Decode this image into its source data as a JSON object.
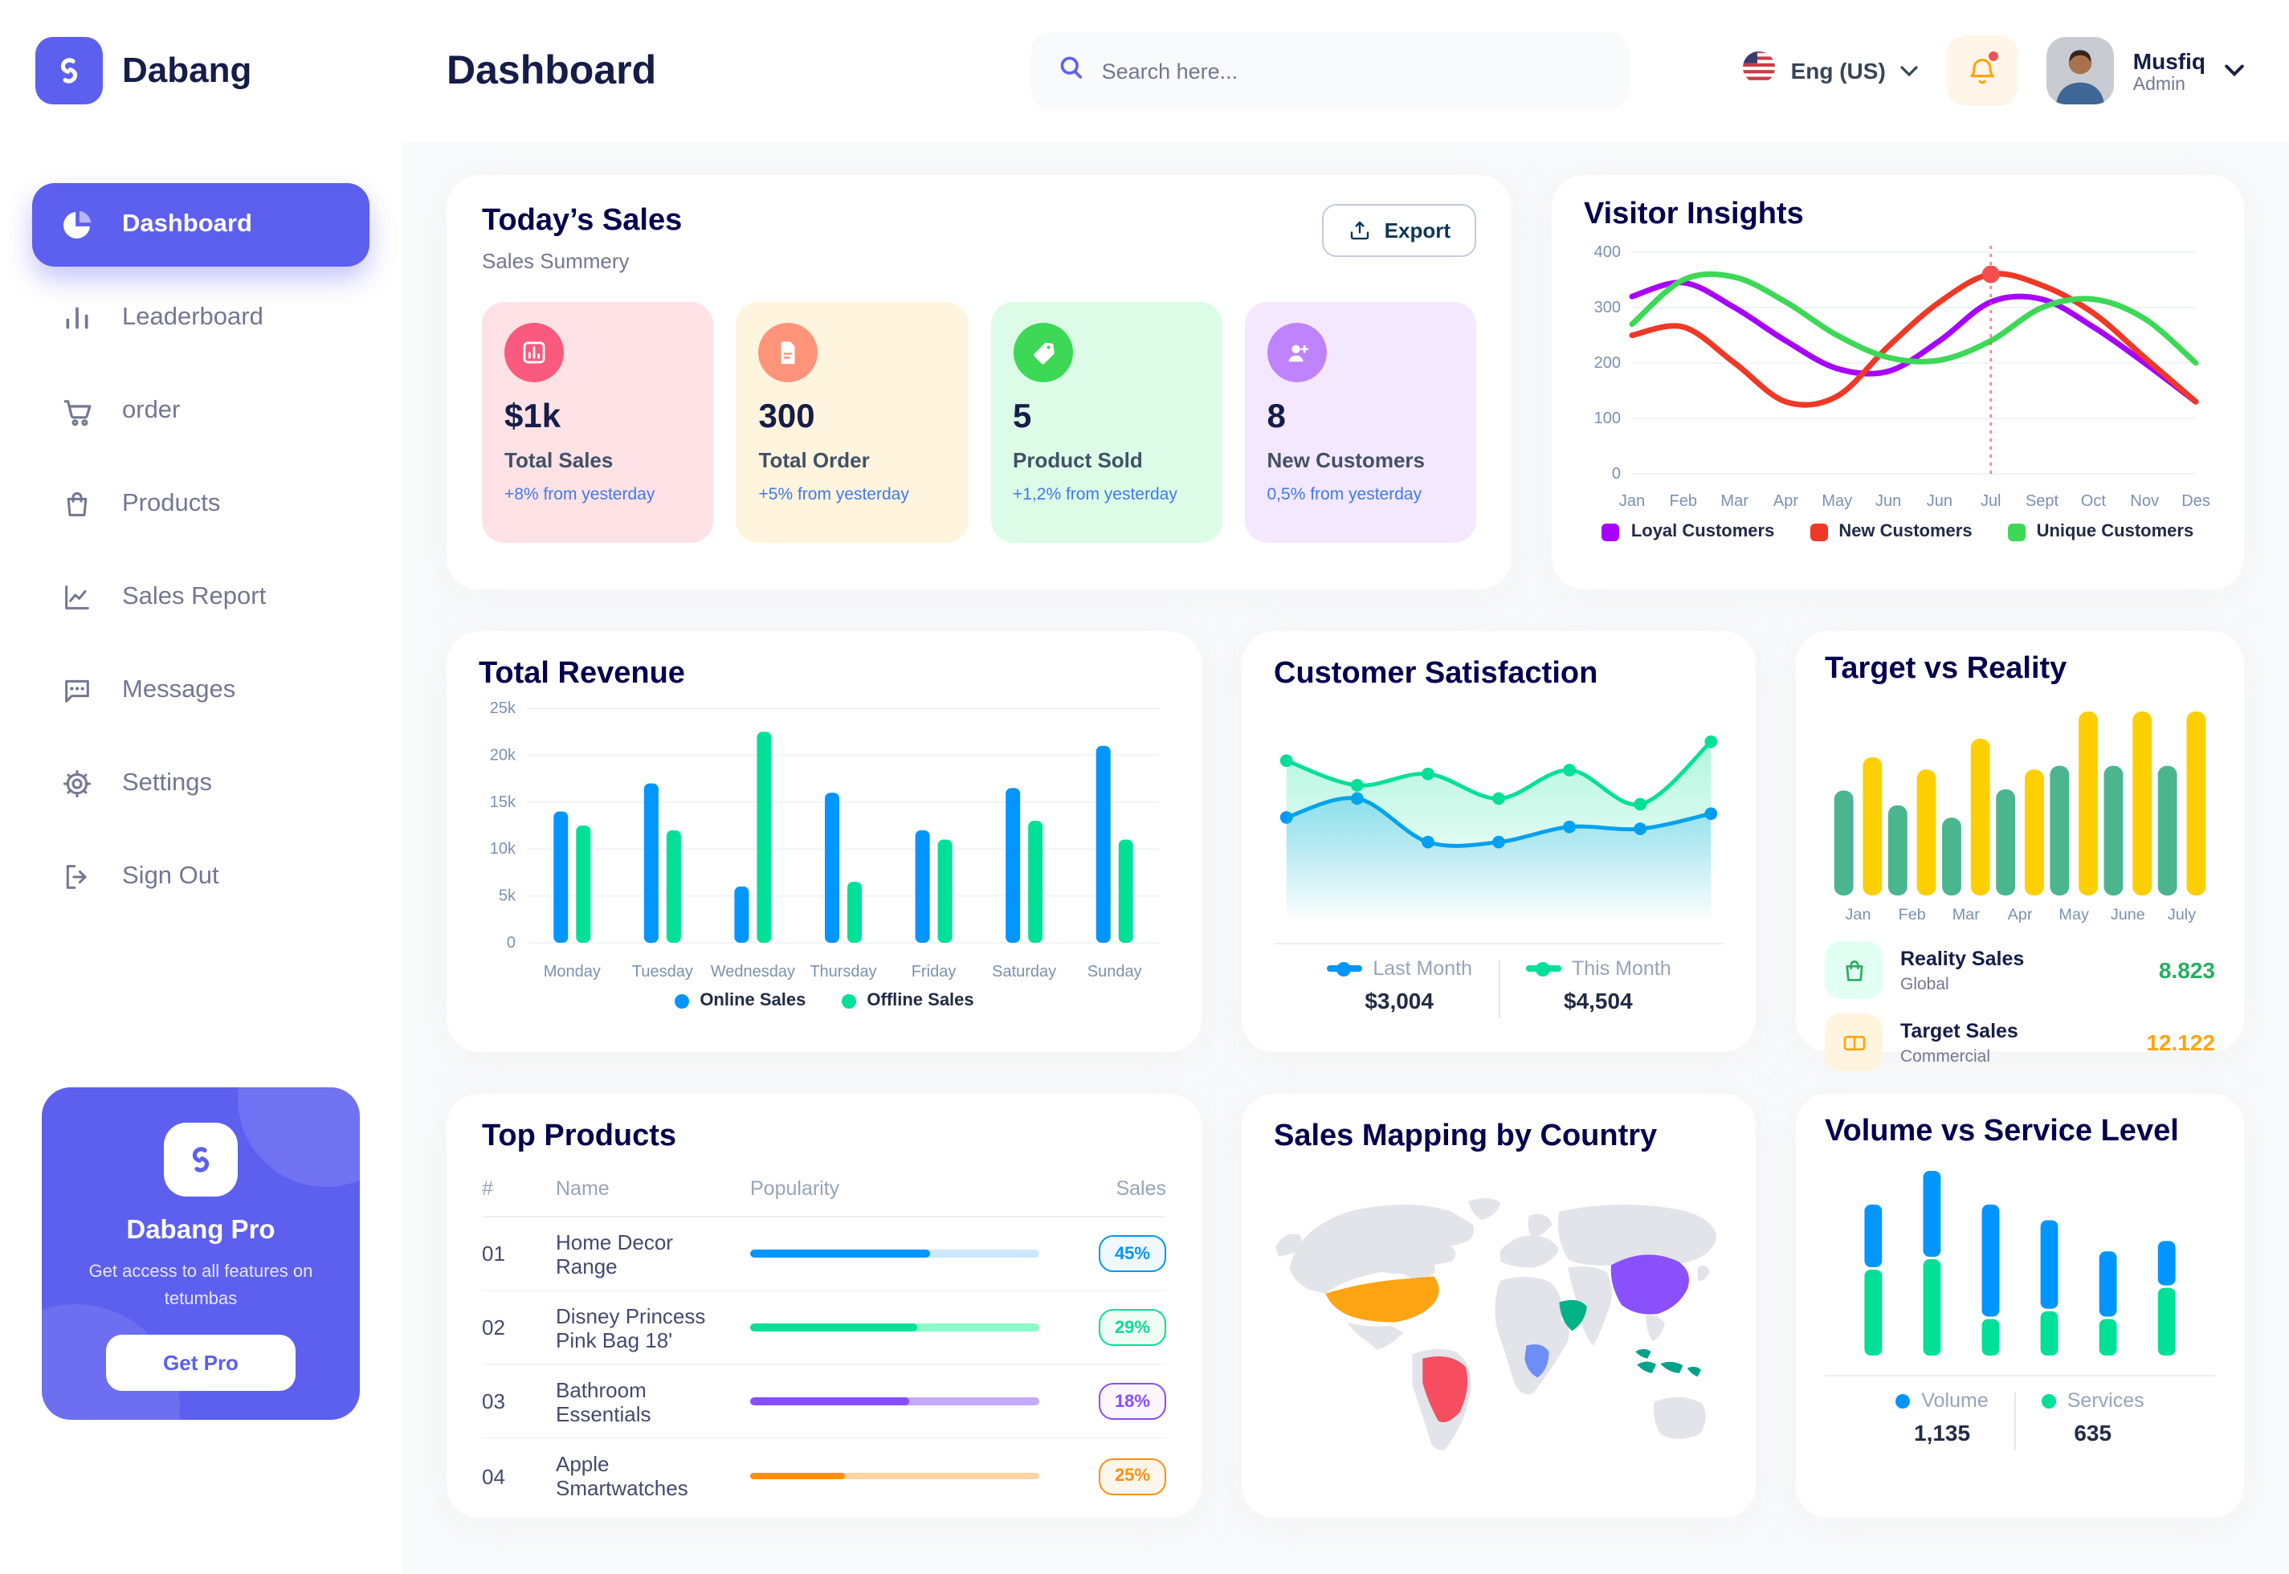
{
  "app": {
    "name": "Dabang",
    "accent_color": "#5D5FEF"
  },
  "header": {
    "title": "Dashboard",
    "search_placeholder": "Search here...",
    "language": "Eng (US)",
    "user_name": "Musfiq",
    "user_role": "Admin",
    "icons": [
      "search-icon",
      "us-flag-icon",
      "bell-icon",
      "chevron-down-icon"
    ]
  },
  "sidebar": {
    "items": [
      {
        "label": "Dashboard",
        "icon": "pie-chart-icon",
        "active": true
      },
      {
        "label": "Leaderboard",
        "icon": "bar-chart-icon",
        "active": false
      },
      {
        "label": "order",
        "icon": "cart-icon",
        "active": false
      },
      {
        "label": "Products",
        "icon": "bag-icon",
        "active": false
      },
      {
        "label": "Sales Report",
        "icon": "line-chart-icon",
        "active": false
      },
      {
        "label": "Messages",
        "icon": "chat-icon",
        "active": false
      },
      {
        "label": "Settings",
        "icon": "gear-icon",
        "active": false
      },
      {
        "label": "Sign Out",
        "icon": "sign-out-icon",
        "active": false
      }
    ],
    "pro": {
      "title": "Dabang Pro",
      "desc": "Get access to all features on tetumbas",
      "cta": "Get Pro"
    }
  },
  "today_sales": {
    "title": "Today’s Sales",
    "subtitle": "Sales Summery",
    "export_label": "Export",
    "cards": [
      {
        "value": "$1k",
        "label": "Total Sales",
        "change": "+8% from yesterday",
        "bg": "#FFE2E5",
        "accent": "#FA5A7D",
        "icon": "bar-chart-icon"
      },
      {
        "value": "300",
        "label": "Total Order",
        "change": "+5% from yesterday",
        "bg": "#FFF4DE",
        "accent": "#FF947A",
        "icon": "file-icon"
      },
      {
        "value": "5",
        "label": "Product Sold",
        "change": "+1,2% from yesterday",
        "bg": "#DCFCE7",
        "accent": "#3CD856",
        "icon": "tag-icon"
      },
      {
        "value": "8",
        "label": "New Customers",
        "change": "0,5% from yesterday",
        "bg": "#F3E8FF",
        "accent": "#BF83FF",
        "icon": "user-plus-icon"
      }
    ]
  },
  "chart_data": [
    {
      "id": "visitor-insights",
      "type": "line",
      "title": "Visitor Insights",
      "x": [
        "Jan",
        "Feb",
        "Mar",
        "Apr",
        "May",
        "Jun",
        "Jun",
        "Jul",
        "Sept",
        "Oct",
        "Nov",
        "Des"
      ],
      "ylim": [
        0,
        400
      ],
      "yticks": [
        0,
        100,
        200,
        300,
        400
      ],
      "grid": true,
      "legend_position": "bottom",
      "series": [
        {
          "name": "Loyal Customers",
          "color": "#A700FF",
          "values": [
            320,
            345,
            300,
            240,
            190,
            185,
            240,
            310,
            315,
            265,
            200,
            130
          ]
        },
        {
          "name": "New Customers",
          "color": "#EF3826",
          "values": [
            250,
            265,
            200,
            130,
            140,
            230,
            310,
            360,
            340,
            290,
            210,
            130
          ]
        },
        {
          "name": "Unique Customers",
          "color": "#3CD856",
          "values": [
            270,
            350,
            355,
            310,
            250,
            210,
            205,
            240,
            300,
            315,
            280,
            200
          ]
        }
      ],
      "marker": {
        "series": "New Customers",
        "x_index": 7,
        "value": 360,
        "color": "#F64E4E"
      }
    },
    {
      "id": "total-revenue",
      "type": "bar",
      "title": "Total Revenue",
      "categories": [
        "Monday",
        "Tuesday",
        "Wednesday",
        "Thursday",
        "Friday",
        "Saturday",
        "Sunday"
      ],
      "ylim": [
        0,
        25000
      ],
      "ytick_labels": [
        "0",
        "5k",
        "10k",
        "15k",
        "20k",
        "25k"
      ],
      "grid": true,
      "legend_position": "bottom",
      "series": [
        {
          "name": "Online Sales",
          "color": "#0095FF",
          "values": [
            14000,
            17000,
            6000,
            16000,
            12000,
            16500,
            21000
          ]
        },
        {
          "name": "Offline Sales",
          "color": "#00E096",
          "values": [
            12500,
            12000,
            22500,
            6500,
            11000,
            13000,
            11000
          ]
        }
      ]
    },
    {
      "id": "customer-satisfaction",
      "type": "area",
      "title": "Customer Satisfaction",
      "x": [
        1,
        2,
        3,
        4,
        5,
        6,
        7
      ],
      "ylim": [
        0,
        110
      ],
      "grid": false,
      "legend_position": "bottom",
      "series": [
        {
          "name": "Last Month",
          "color": "#0095FF",
          "total": "$3,004",
          "values": [
            55,
            65,
            42,
            42,
            50,
            49,
            57
          ]
        },
        {
          "name": "This Month",
          "color": "#00E096",
          "total": "$4,504",
          "values": [
            85,
            72,
            78,
            65,
            80,
            62,
            95
          ]
        }
      ]
    },
    {
      "id": "target-vs-reality",
      "type": "bar",
      "title": "Target vs Reality",
      "categories": [
        "Jan",
        "Feb",
        "Mar",
        "Apr",
        "May",
        "June",
        "July"
      ],
      "ylim": [
        0,
        16
      ],
      "grid": false,
      "legend_position": "bottom",
      "series": [
        {
          "name": "Reality Sales",
          "color": "#4AB58E",
          "values": [
            8.5,
            7.3,
            6.3,
            8.6,
            10.5,
            10.5,
            10.5
          ]
        },
        {
          "name": "Target Sales",
          "color": "#FFCF00",
          "values": [
            11.2,
            10.2,
            12.7,
            10.2,
            14.9,
            14.9,
            14.9
          ]
        }
      ],
      "legend": [
        {
          "name": "Reality Sales",
          "sub": "Global",
          "value": "8.823",
          "value_color": "#27AE60",
          "icon_bg": "#E2FFF3",
          "icon": "bag-icon"
        },
        {
          "name": "Target Sales",
          "sub": "Commercial",
          "value": "12.122",
          "value_color": "#FFA412",
          "icon_bg": "#FFF4DE",
          "icon": "ticket-icon"
        }
      ]
    },
    {
      "id": "volume-service",
      "type": "bar",
      "stacked": true,
      "title": "Volume vs Service Level",
      "categories": [
        "1",
        "2",
        "3",
        "4",
        "5",
        "6"
      ],
      "ylim": [
        0,
        760
      ],
      "grid": false,
      "legend_position": "bottom",
      "series": [
        {
          "name": "Volume",
          "color": "#0095FF",
          "total": "1,135",
          "values": [
            250,
            340,
            440,
            350,
            260,
            180
          ]
        },
        {
          "name": "Services",
          "color": "#00E096",
          "total": "635",
          "values": [
            340,
            380,
            150,
            180,
            150,
            270
          ]
        }
      ]
    }
  ],
  "top_products": {
    "title": "Top Products",
    "columns": {
      "num": "#",
      "name": "Name",
      "popularity": "Popularity",
      "sales": "Sales"
    },
    "rows": [
      {
        "num": "01",
        "name": "Home Decor Range",
        "popularity_pct": "62%",
        "sales": "45%",
        "color": "#0095FF",
        "track": "#CDE7FF",
        "badge_bg": "#F0F9FF"
      },
      {
        "num": "02",
        "name": "Disney Princess Pink Bag 18'",
        "popularity_pct": "58%",
        "sales": "29%",
        "color": "#00E096",
        "track": "#8CFAC7",
        "badge_bg": "#F0FDF4"
      },
      {
        "num": "03",
        "name": "Bathroom Essentials",
        "popularity_pct": "55%",
        "sales": "18%",
        "color": "#884DFF",
        "track": "#C5A8FF",
        "badge_bg": "#FAF5FF"
      },
      {
        "num": "04",
        "name": "Apple Smartwatches",
        "popularity_pct": "33%",
        "sales": "25%",
        "color": "#FF8F0D",
        "track": "#FFD5A4",
        "badge_bg": "#FFF7ED"
      }
    ]
  },
  "sales_map": {
    "title": "Sales Mapping by Country",
    "base_color": "#E2E4EA",
    "countries": [
      {
        "name": "United States",
        "color": "#FFA412"
      },
      {
        "name": "Brazil",
        "color": "#F64E60"
      },
      {
        "name": "DR Congo",
        "color": "#6D8DF7"
      },
      {
        "name": "Saudi Arabia",
        "color": "#00B286"
      },
      {
        "name": "China",
        "color": "#8950FC"
      },
      {
        "name": "Indonesia",
        "color": "#00A389"
      }
    ]
  }
}
